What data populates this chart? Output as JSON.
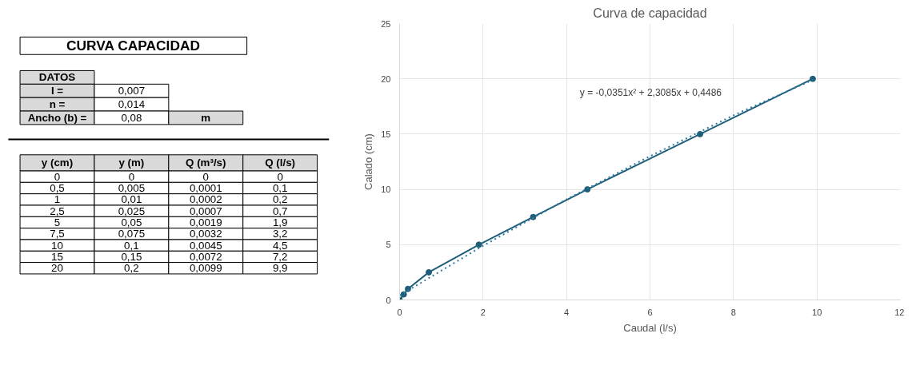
{
  "chart_data": [
    {
      "type": "other",
      "title": "CURVA CAPACIDAD",
      "annotations": [
        "DATOS",
        "I =",
        "0,007",
        "n =",
        "0,014",
        "Ancho (b) =",
        "0,08",
        "m",
        "y (cm)",
        "y (m)",
        "Q (m³/s)",
        "Q (l/s)",
        "0",
        "0",
        "0",
        "0",
        "0,5",
        "0,005",
        "0,0001",
        "0,1",
        "1",
        "0,01",
        "0,0002",
        "0,2",
        "2,5",
        "0,025",
        "0,0007",
        "0,7",
        "5",
        "0,05",
        "0,0019",
        "1,9",
        "7,5",
        "0,075",
        "0,0032",
        "3,2",
        "10",
        "0,1",
        "0,0045",
        "4,5",
        "15",
        "0,15",
        "0,0072",
        "7,2",
        "20",
        "0,2",
        "0,0099",
        "9,9"
      ]
    },
    {
      "type": "line",
      "title": "Curva de capacidad",
      "xlabel": "Caudal (l/s)",
      "ylabel": "Calado (cm)",
      "xlim": [
        0,
        12
      ],
      "xticks": [
        0,
        2,
        4,
        6,
        8,
        10,
        12
      ],
      "ylim": [
        0,
        25
      ],
      "yticks": [
        0,
        5,
        10,
        15,
        20,
        25
      ],
      "grid": true,
      "annotations": [
        "y = -0,0351x² + 2,3085x + 0,4486"
      ],
      "series": [
        {
          "color": "#1f5f7a",
          "marker": "circle",
          "line_style": "solid",
          "x": [
            0,
            0.1,
            0.2,
            0.7,
            1.9,
            3.2,
            4.5,
            7.2,
            9.9
          ],
          "values": [
            0,
            0.5,
            1,
            2.5,
            5,
            7.5,
            10,
            15,
            20
          ]
        },
        {
          "color": "#2f7aa0",
          "marker": "none",
          "line_style": "dotted",
          "x": [
            0,
            2,
            4,
            6,
            8,
            9.9
          ],
          "values": [
            0.4,
            4.9,
            9.1,
            13.0,
            16.7,
            19.9
          ]
        }
      ]
    }
  ]
}
